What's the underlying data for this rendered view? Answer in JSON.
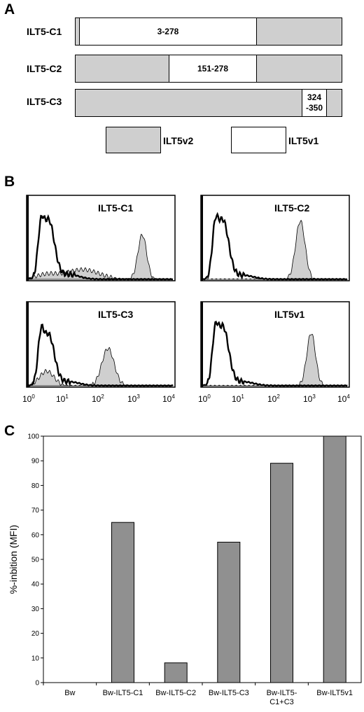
{
  "panels": {
    "a": "A",
    "b": "B",
    "c": "C"
  },
  "panel_a": {
    "constructs": [
      {
        "name": "ILT5-C1",
        "white_label": "3-278"
      },
      {
        "name": "ILT5-C2",
        "white_label": "151-278"
      },
      {
        "name": "ILT5-C3",
        "white_label_line1": "324",
        "white_label_line2": "-350"
      }
    ],
    "legend": [
      {
        "label": "ILT5v2",
        "color": "#cfcfcf"
      },
      {
        "label": "ILT5v1",
        "color": "#ffffff"
      }
    ]
  },
  "panel_b": {
    "histograms": [
      {
        "title": "ILT5-C1"
      },
      {
        "title": "ILT5-C2"
      },
      {
        "title": "ILT5-C3"
      },
      {
        "title": "ILT5v1"
      }
    ],
    "x_ticks": [
      {
        "base": "10",
        "exp": "0"
      },
      {
        "base": "10",
        "exp": "1"
      },
      {
        "base": "10",
        "exp": "2"
      },
      {
        "base": "10",
        "exp": "3"
      },
      {
        "base": "10",
        "exp": "4"
      }
    ]
  },
  "chart_data": {
    "type": "bar",
    "categories": [
      "Bw",
      "Bw-ILT5-C1",
      "Bw-ILT5-C2",
      "Bw-ILT5-C3",
      "Bw-ILT5-C1+C3",
      "Bw-ILT5v1"
    ],
    "category_lines": [
      [
        "Bw"
      ],
      [
        "Bw-ILT5-C1"
      ],
      [
        "Bw-ILT5-C2"
      ],
      [
        "Bw-ILT5-C3"
      ],
      [
        "Bw-ILT5-",
        "C1+C3"
      ],
      [
        "Bw-ILT5v1"
      ]
    ],
    "values": [
      0,
      65,
      8,
      57,
      89,
      100
    ],
    "ylabel": "%-inbition (MFI)",
    "xlabel": "",
    "ylim": [
      0,
      100
    ],
    "yticks": [
      "0",
      "10",
      "20",
      "30",
      "40",
      "50",
      "60",
      "70",
      "80",
      "90",
      "100"
    ],
    "bar_color": "#909090",
    "grid": false
  }
}
